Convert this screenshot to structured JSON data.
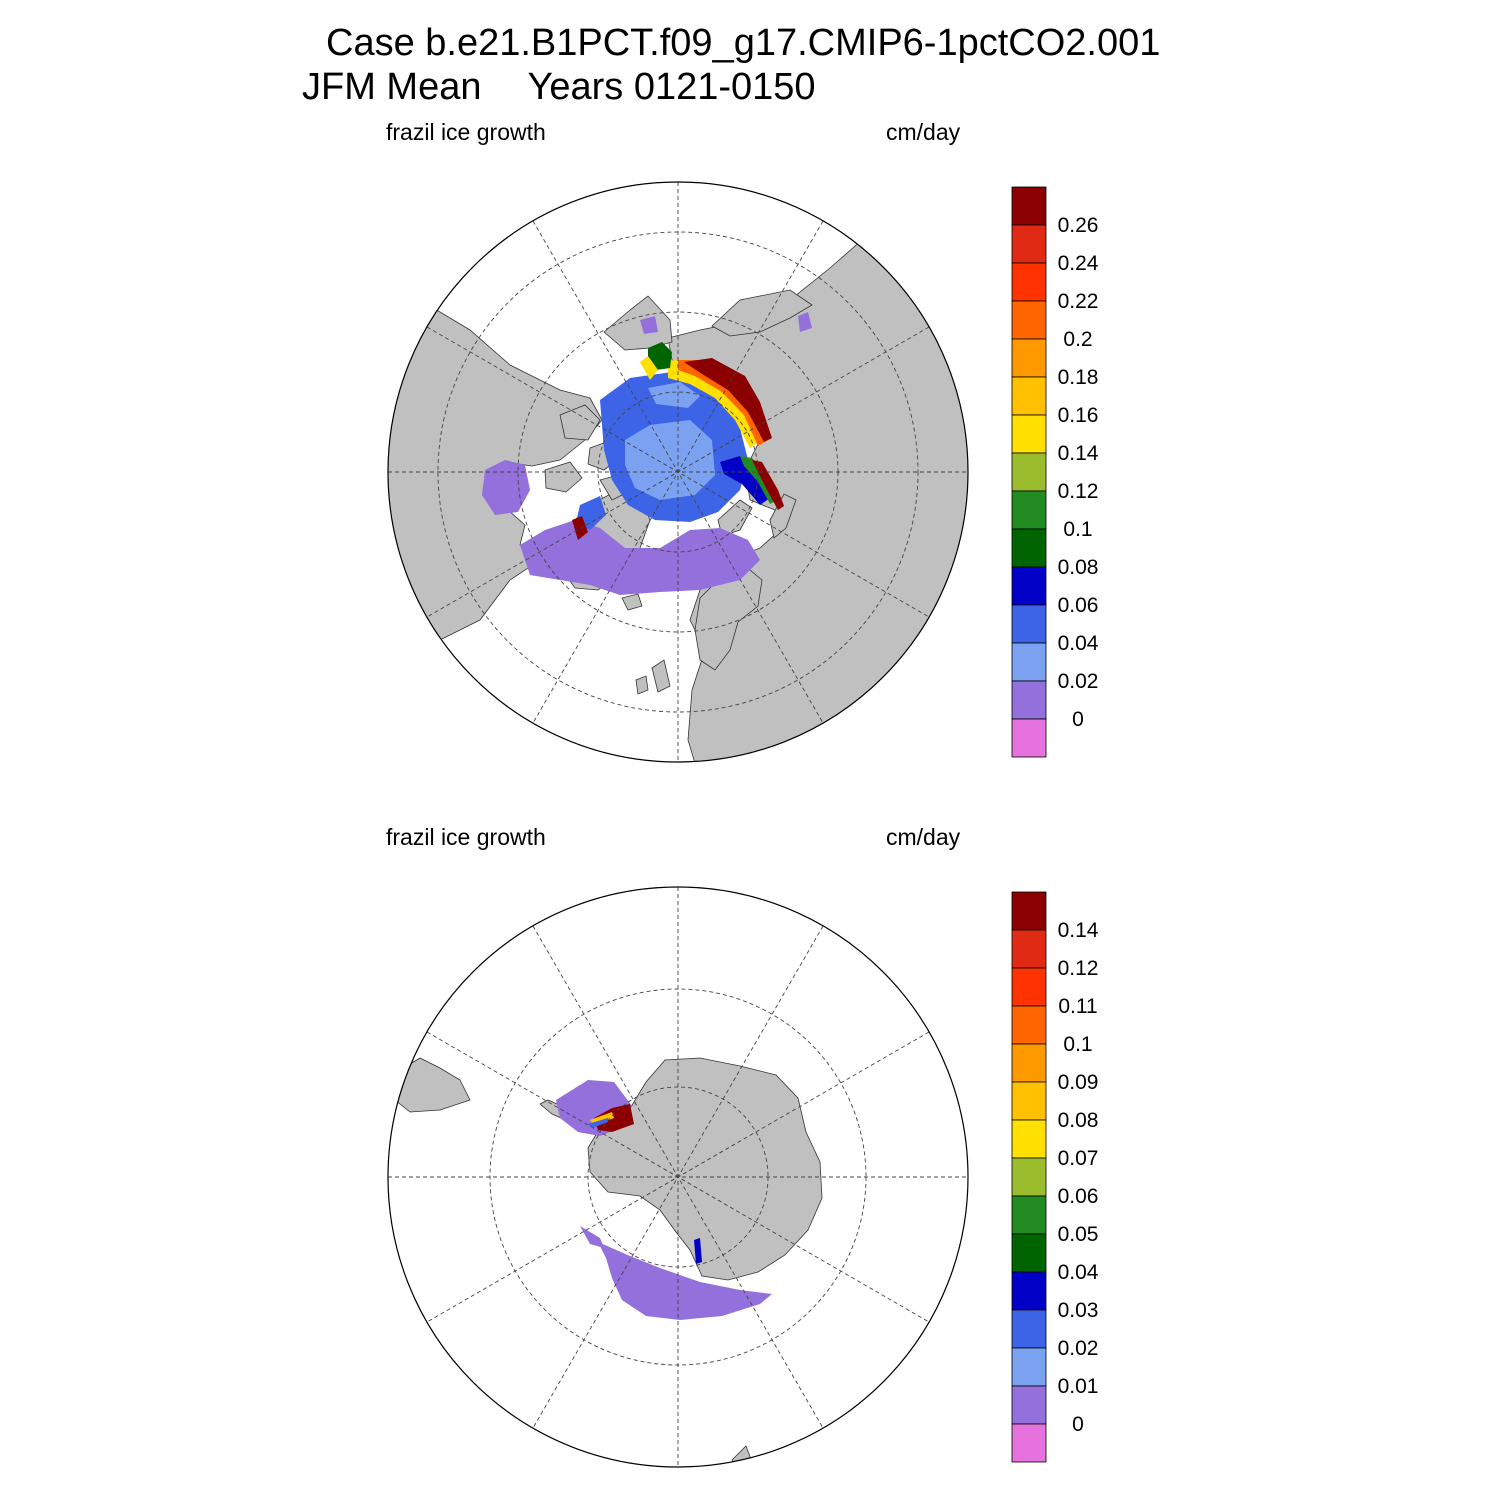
{
  "title": {
    "line1": "Case b.e21.B1PCT.f09_g17.CMIP6-1pctCO2.001",
    "season": "JFM Mean",
    "years": "Years 0121-0150"
  },
  "colors": {
    "land": "#c0c0c0",
    "boundaries": [
      "#e572dd",
      "#9370db",
      "#7ba2f1",
      "#3d64e6",
      "#0000c6",
      "#006400",
      "#228b22",
      "#9bbd2d",
      "#ffe000",
      "#ffc000",
      "#ff9900",
      "#ff6600",
      "#ff3300",
      "#e12a14",
      "#8b0000"
    ]
  },
  "panels": [
    {
      "id": "north",
      "variable": "frazil ice growth",
      "units": "cm/day",
      "colorbar_labels": [
        "0.26",
        "0.24",
        "0.22",
        "0.2",
        "0.18",
        "0.16",
        "0.14",
        "0.12",
        "0.1",
        "0.08",
        "0.06",
        "0.04",
        "0.02",
        "0"
      ]
    },
    {
      "id": "south",
      "variable": "frazil ice growth",
      "units": "cm/day",
      "colorbar_labels": [
        "0.14",
        "0.12",
        "0.11",
        "0.1",
        "0.09",
        "0.08",
        "0.07",
        "0.06",
        "0.05",
        "0.04",
        "0.03",
        "0.02",
        "0.01",
        "0"
      ]
    }
  ]
}
